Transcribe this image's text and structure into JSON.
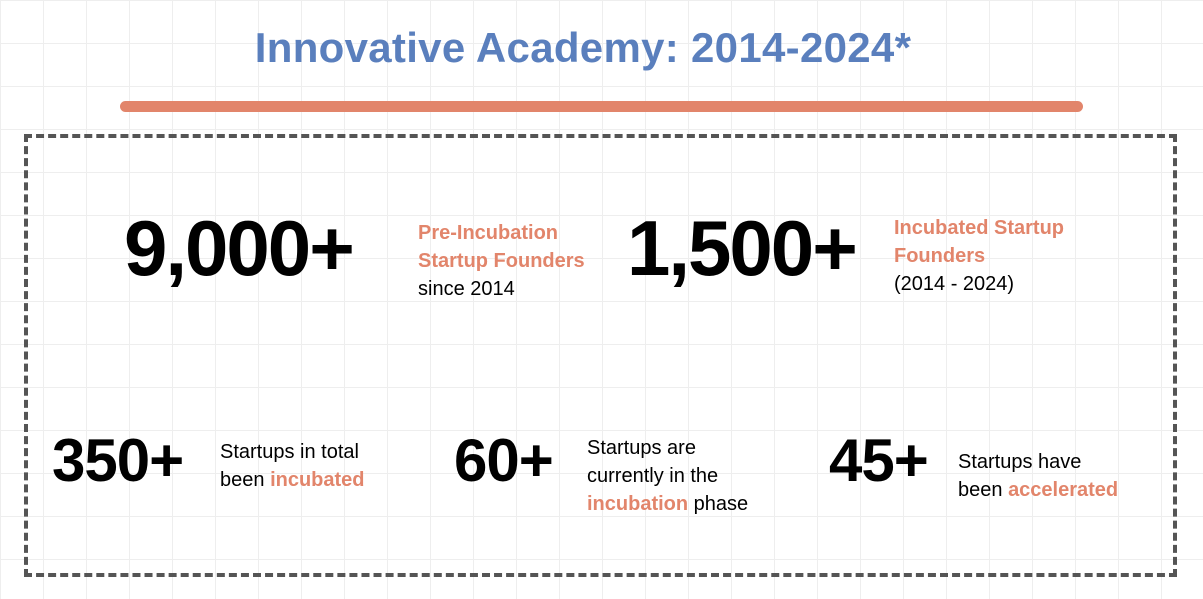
{
  "title": "Innovative Academy: 2014-2024*",
  "colors": {
    "title": "#5a7fbd",
    "accent": "#e2856b",
    "frame": "#555555"
  },
  "stats": [
    {
      "number": "9,000+",
      "line1": "Pre-Incubation",
      "line2": "Startup Founders",
      "line3": "since 2014"
    },
    {
      "number": "1,500+",
      "line1": "Incubated Startup",
      "line2": "Founders",
      "line3": "(2014 - 2024)"
    },
    {
      "number": "350+",
      "line1": "Startups in total",
      "line2_pre": "been ",
      "line2_accent": "incubated"
    },
    {
      "number": "60+",
      "line1": "Startups are",
      "line2": "currently in the",
      "line3_accent": "incubation",
      "line3_post": " phase"
    },
    {
      "number": "45+",
      "line1": "Startups have",
      "line2_pre": "been ",
      "line2_accent": "accelerated"
    }
  ]
}
